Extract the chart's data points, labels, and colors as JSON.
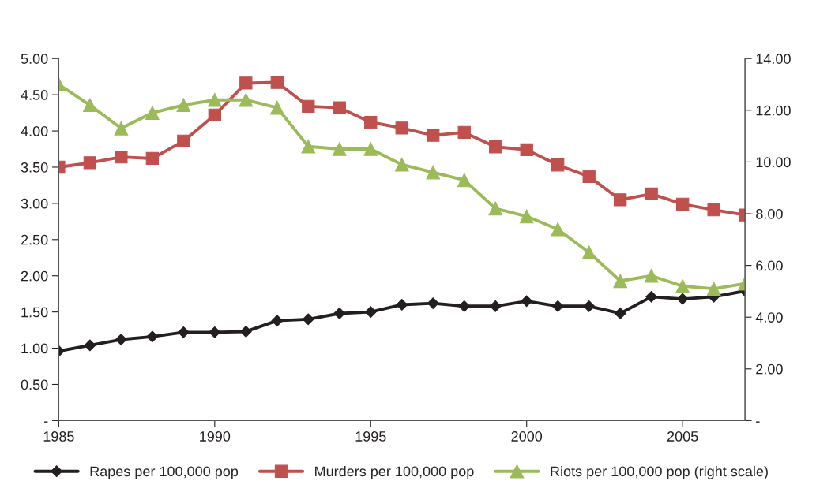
{
  "chart_data": {
    "type": "line",
    "x": [
      1985,
      1986,
      1987,
      1988,
      1989,
      1990,
      1991,
      1992,
      1993,
      1994,
      1995,
      1996,
      1997,
      1998,
      1999,
      2000,
      2001,
      2002,
      2003,
      2004,
      2005,
      2006,
      2007
    ],
    "series": [
      {
        "name": "Rapes per 100,000 pop",
        "color": "#231f20",
        "marker": "diamond",
        "values": [
          0.96,
          1.04,
          1.12,
          1.16,
          1.22,
          1.22,
          1.23,
          1.38,
          1.4,
          1.48,
          1.5,
          1.6,
          1.62,
          1.58,
          1.58,
          1.65,
          1.58,
          1.58,
          1.48,
          1.71,
          1.68,
          1.71,
          1.79
        ]
      },
      {
        "name": "Murders per 100,000 pop",
        "color": "#c0504d",
        "marker": "square",
        "values": [
          3.5,
          3.56,
          3.64,
          3.62,
          3.86,
          4.22,
          4.66,
          4.67,
          4.34,
          4.32,
          4.12,
          4.04,
          3.94,
          3.98,
          3.78,
          3.74,
          3.53,
          3.37,
          3.05,
          3.13,
          2.99,
          2.91,
          2.84
        ]
      },
      {
        "name": "Riots per 100,000 pop (right scale)",
        "color": "#9bbb59",
        "marker": "triangle",
        "axis": "y2",
        "values": [
          13.0,
          12.2,
          11.3,
          11.9,
          12.2,
          12.4,
          12.4,
          12.1,
          10.6,
          10.5,
          10.5,
          9.9,
          9.6,
          9.3,
          8.2,
          7.9,
          7.4,
          6.5,
          5.4,
          5.6,
          5.2,
          5.1,
          5.3
        ]
      }
    ],
    "xlim": [
      1985,
      2007
    ],
    "xticks": [
      1985,
      1990,
      1995,
      2000,
      2005
    ],
    "ylim": [
      0,
      5
    ],
    "yticks": [
      {
        "value": 0,
        "label": "-"
      },
      {
        "value": 0.5,
        "label": "0.50"
      },
      {
        "value": 1,
        "label": "1.00"
      },
      {
        "value": 1.5,
        "label": "1.50"
      },
      {
        "value": 2,
        "label": "2.00"
      },
      {
        "value": 2.5,
        "label": "2.50"
      },
      {
        "value": 3,
        "label": "3.00"
      },
      {
        "value": 3.5,
        "label": "3.50"
      },
      {
        "value": 4,
        "label": "4.00"
      },
      {
        "value": 4.5,
        "label": "4.50"
      },
      {
        "value": 5,
        "label": "5.00"
      }
    ],
    "y2lim": [
      0,
      14
    ],
    "y2ticks": [
      {
        "value": 0,
        "label": "-"
      },
      {
        "value": 2,
        "label": "2.00"
      },
      {
        "value": 4,
        "label": "4.00"
      },
      {
        "value": 6,
        "label": "6.00"
      },
      {
        "value": 8,
        "label": "8.00"
      },
      {
        "value": 10,
        "label": "10.00"
      },
      {
        "value": 12,
        "label": "12.00"
      },
      {
        "value": 14,
        "label": "14.00"
      }
    ],
    "grid": false,
    "legend": "bottom",
    "line_style": "solid"
  }
}
